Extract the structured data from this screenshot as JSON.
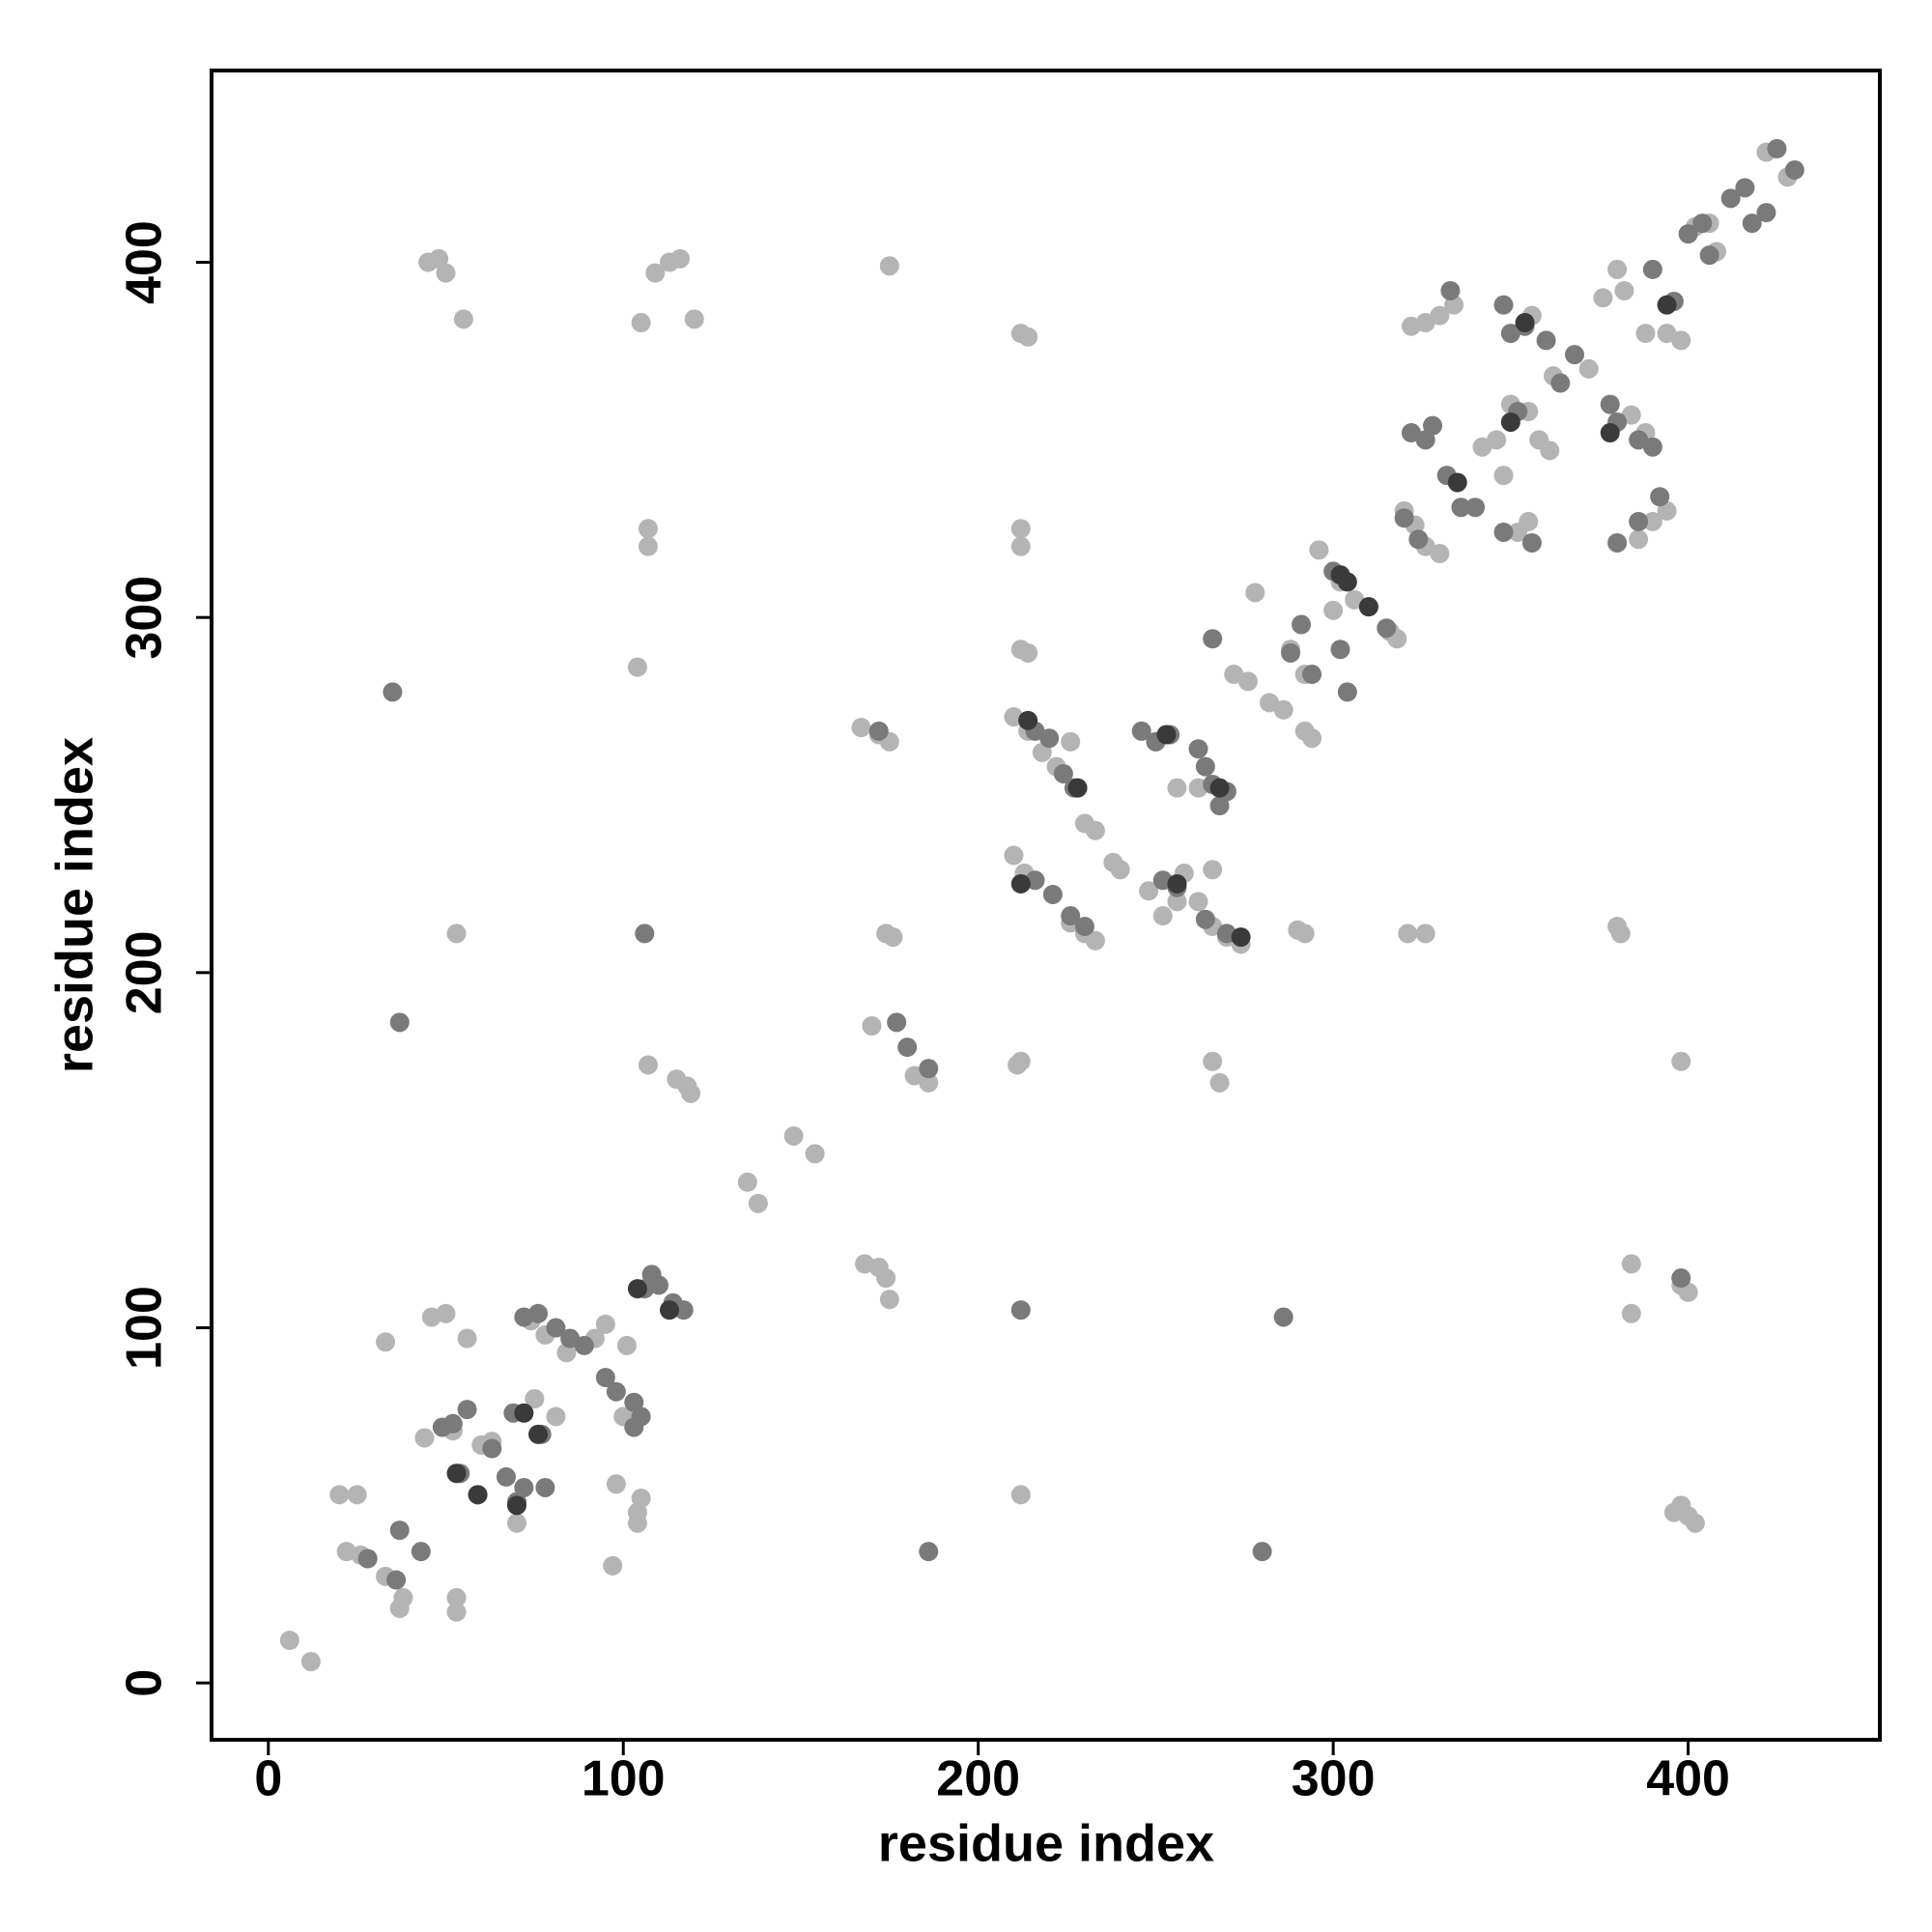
{
  "chart_data": {
    "type": "scatter",
    "x_label": "residue index",
    "y_label": "residue index",
    "xlim": [
      -16,
      454
    ],
    "ylim": [
      -16,
      454
    ],
    "xticks": [
      0,
      100,
      200,
      300,
      400
    ],
    "yticks": [
      0,
      100,
      200,
      300,
      400
    ],
    "series": [
      {
        "color": "#b4b4b4",
        "x": [
          6,
          12,
          20,
          25,
          22,
          26,
          33,
          38,
          37,
          53,
          53,
          33,
          46,
          50,
          56,
          44,
          52,
          60,
          63,
          70,
          75,
          81,
          74,
          78,
          84,
          92,
          95,
          97,
          98,
          101,
          100,
          103,
          104,
          104,
          105,
          45,
          48,
          50,
          55,
          53,
          105,
          109,
          113,
          116,
          120,
          107,
          107,
          104,
          107,
          115,
          118,
          119,
          135,
          138,
          148,
          154,
          175,
          167,
          172,
          175,
          168,
          172,
          174,
          175,
          174,
          176,
          170,
          182,
          186,
          212,
          214,
          212,
          212,
          212,
          214,
          212,
          211,
          212,
          210,
          214,
          218,
          222,
          226,
          230,
          233,
          238,
          240,
          210,
          213,
          226,
          230,
          233,
          248,
          252,
          256,
          258,
          262,
          266,
          270,
          274,
          256,
          262,
          266,
          266,
          268,
          278,
          272,
          276,
          282,
          286,
          292,
          294,
          290,
          292,
          288,
          292,
          296,
          302,
          306,
          316,
          318,
          300,
          320,
          323,
          326,
          330,
          322,
          326,
          330,
          334,
          342,
          346,
          348,
          350,
          355,
          358,
          361,
          362,
          356,
          372,
          376,
          380,
          382,
          388,
          394,
          398,
          380,
          381,
          321,
          326,
          384,
          384,
          398,
          398,
          400,
          396,
          398,
          400,
          402,
          386,
          390,
          394,
          355,
          352,
          384,
          388,
          402,
          406,
          408,
          422,
          428
        ],
        "y": [
          12,
          6,
          53,
          53,
          37,
          36,
          30,
          24,
          21,
          24,
          20,
          96,
          103,
          104,
          97,
          69,
          71,
          67,
          68,
          45,
          80,
          75,
          102,
          98,
          93,
          97,
          101,
          33,
          56,
          95,
          75,
          73,
          45,
          48,
          52,
          400,
          401,
          397,
          384,
          211,
          383,
          397,
          400,
          401,
          384,
          325,
          320,
          286,
          174,
          170,
          168,
          166,
          141,
          135,
          154,
          149,
          399,
          269,
          267,
          265,
          118,
          117,
          114,
          108,
          211,
          210,
          185,
          171,
          169,
          380,
          379,
          325,
          320,
          291,
          290,
          175,
          174,
          53,
          272,
          268,
          262,
          258,
          265,
          242,
          240,
          231,
          229,
          233,
          228,
          214,
          211,
          209,
          223,
          216,
          220,
          228,
          220,
          213,
          210,
          208,
          252,
          252,
          229,
          175,
          169,
          307,
          284,
          282,
          276,
          274,
          268,
          266,
          212,
          211,
          291,
          284,
          319,
          310,
          305,
          296,
          294,
          302,
          330,
          326,
          320,
          318,
          382,
          383,
          385,
          388,
          348,
          350,
          340,
          360,
          358,
          350,
          347,
          368,
          385,
          370,
          390,
          398,
          392,
          380,
          380,
          378,
          213,
          211,
          211,
          211,
          118,
          104,
          175,
          112,
          110,
          48,
          50,
          47,
          45,
          322,
          327,
          330,
          327,
          324,
          357,
          352,
          410,
          411,
          403,
          431,
          424
        ]
      },
      {
        "color": "#7a7a7a",
        "x": [
          28,
          36,
          37,
          43,
          35,
          37,
          49,
          52,
          56,
          54,
          59,
          63,
          67,
          70,
          72,
          69,
          77,
          78,
          72,
          76,
          81,
          85,
          89,
          95,
          98,
          103,
          105,
          103,
          106,
          108,
          110,
          114,
          117,
          106,
          212,
          172,
          177,
          180,
          186,
          186,
          216,
          220,
          224,
          227,
          216,
          221,
          226,
          230,
          246,
          250,
          254,
          262,
          252,
          256,
          264,
          270,
          264,
          266,
          268,
          270,
          266,
          288,
          291,
          294,
          302,
          304,
          300,
          310,
          315,
          280,
          286,
          320,
          324,
          322,
          326,
          328,
          332,
          336,
          340,
          333,
          348,
          350,
          354,
          360,
          348,
          356,
          352,
          364,
          368,
          378,
          380,
          386,
          390,
          380,
          386,
          392,
          390,
          396,
          400,
          404,
          406,
          412,
          416,
          418,
          422,
          425,
          430,
          398
        ],
        "y": [
          35,
          29,
          43,
          37,
          279,
          186,
          72,
          73,
          77,
          59,
          53,
          66,
          58,
          51,
          55,
          76,
          70,
          55,
          103,
          104,
          100,
          97,
          95,
          86,
          82,
          79,
          75,
          72,
          111,
          115,
          112,
          107,
          105,
          211,
          105,
          268,
          186,
          179,
          173,
          37,
          268,
          266,
          256,
          252,
          226,
          222,
          216,
          213,
          268,
          265,
          267,
          263,
          226,
          224,
          215,
          211,
          258,
          253,
          247,
          251,
          294,
          290,
          298,
          284,
          291,
          279,
          313,
          303,
          297,
          37,
          103,
          328,
          322,
          352,
          350,
          354,
          340,
          331,
          331,
          392,
          388,
          380,
          382,
          378,
          324,
          321,
          358,
          366,
          374,
          360,
          355,
          350,
          348,
          321,
          327,
          334,
          398,
          389,
          408,
          411,
          402,
          418,
          421,
          411,
          414,
          432,
          426,
          114
        ]
      },
      {
        "color": "#3a3a3a",
        "x": [
          53,
          59,
          70,
          72,
          76,
          104,
          113,
          212,
          214,
          228,
          253,
          256,
          268,
          274,
          302,
          304,
          310,
          335,
          350,
          354,
          378,
          394
        ],
        "y": [
          59,
          53,
          50,
          76,
          70,
          111,
          105,
          225,
          271,
          252,
          267,
          225,
          252,
          210,
          312,
          310,
          303,
          338,
          355,
          383,
          352,
          388
        ]
      }
    ]
  }
}
